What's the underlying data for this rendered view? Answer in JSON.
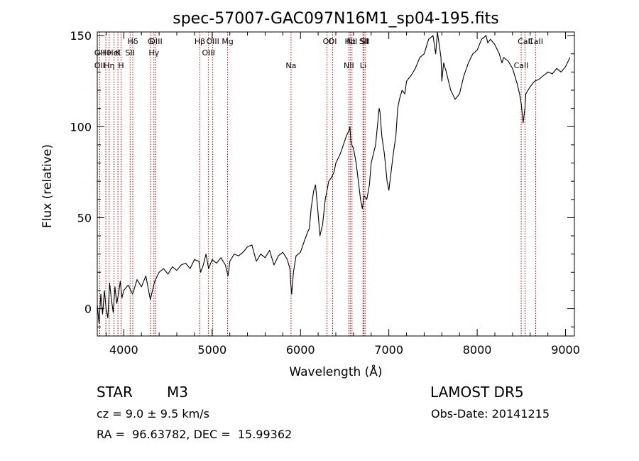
{
  "chart_data": {
    "type": "line",
    "title": "spec-57007-GAC097N16M1_sp04-195.fits",
    "xlabel": "Wavelength (Å)",
    "ylabel": "Flux (relative)",
    "xlim": [
      3700,
      9100
    ],
    "ylim": [
      -15,
      152
    ],
    "xticks": [
      4000,
      5000,
      6000,
      7000,
      8000,
      9000
    ],
    "yticks": [
      0,
      50,
      100,
      150
    ],
    "grid": false,
    "series": [
      {
        "x": [
          3700,
          3720,
          3740,
          3760,
          3780,
          3800,
          3820,
          3840,
          3860,
          3880,
          3900,
          3920,
          3940,
          3960,
          3980,
          4000,
          4050,
          4100,
          4150,
          4200,
          4250,
          4300,
          4350,
          4400,
          4450,
          4500,
          4550,
          4600,
          4650,
          4700,
          4750,
          4800,
          4850,
          4870,
          4900,
          4930,
          4960,
          5000,
          5050,
          5100,
          5150,
          5180,
          5200,
          5250,
          5300,
          5350,
          5400,
          5450,
          5500,
          5550,
          5600,
          5650,
          5700,
          5750,
          5800,
          5850,
          5880,
          5890,
          5900,
          5920,
          5950,
          6000,
          6050,
          6080,
          6100,
          6120,
          6150,
          6170,
          6200,
          6220,
          6250,
          6280,
          6300,
          6320,
          6350,
          6380,
          6400,
          6450,
          6500,
          6520,
          6550,
          6560,
          6570,
          6580,
          6600,
          6630,
          6650,
          6680,
          6700,
          6720,
          6750,
          6780,
          6800,
          6850,
          6870,
          6890,
          6900,
          6920,
          6950,
          6980,
          7000,
          7050,
          7080,
          7100,
          7120,
          7150,
          7180,
          7200,
          7250,
          7300,
          7350,
          7400,
          7450,
          7500,
          7530,
          7550,
          7570,
          7590,
          7600,
          7620,
          7650,
          7700,
          7750,
          7800,
          7850,
          7900,
          7950,
          8000,
          8050,
          8100,
          8120,
          8150,
          8200,
          8250,
          8280,
          8300,
          8350,
          8400,
          8450,
          8480,
          8500,
          8520,
          8540,
          8550,
          8600,
          8650,
          8700,
          8750,
          8800,
          8850,
          8900,
          8950,
          9000,
          9050
        ],
        "y": [
          2,
          -8,
          8,
          -3,
          10,
          0,
          -5,
          14,
          5,
          -2,
          12,
          3,
          8,
          15,
          6,
          10,
          13,
          8,
          16,
          12,
          18,
          5,
          15,
          20,
          22,
          19,
          23,
          21,
          24,
          25,
          22,
          27,
          26,
          20,
          24,
          30,
          22,
          27,
          25,
          28,
          24,
          18,
          26,
          30,
          29,
          31,
          34,
          35,
          26,
          30,
          28,
          32,
          24,
          29,
          31,
          27,
          22,
          14,
          8,
          20,
          29,
          31,
          38,
          42,
          44,
          55,
          65,
          68,
          52,
          40,
          46,
          60,
          65,
          70,
          72,
          75,
          80,
          85,
          92,
          95,
          98,
          100,
          92,
          90,
          88,
          80,
          72,
          60,
          55,
          62,
          60,
          68,
          80,
          90,
          100,
          110,
          108,
          95,
          85,
          70,
          65,
          85,
          95,
          110,
          115,
          120,
          118,
          125,
          128,
          132,
          138,
          140,
          148,
          150,
          140,
          152,
          145,
          138,
          125,
          135,
          130,
          120,
          115,
          118,
          128,
          135,
          140,
          142,
          148,
          150,
          146,
          148,
          145,
          140,
          135,
          138,
          136,
          132,
          124,
          118,
          112,
          102,
          110,
          118,
          122,
          125,
          126,
          128,
          130,
          129,
          132,
          130,
          133,
          138
        ]
      }
    ],
    "line_markers": [
      {
        "label": "Hδ",
        "wavelength": 4102
      },
      {
        "label": "OIII",
        "wavelength": 4363
      },
      {
        "label": "OIII",
        "wavelength": 5007
      },
      {
        "label": "OI",
        "wavelength": 6300
      },
      {
        "label": "Hα",
        "wavelength": 6563
      },
      {
        "label": "SII",
        "wavelength": 6717
      },
      {
        "label": "CaII",
        "wavelength": 8542
      },
      {
        "label": "OII",
        "wavelength": 3727
      },
      {
        "label": "Hθ",
        "wavelength": 3797
      },
      {
        "label": "K",
        "wavelength": 3934
      },
      {
        "label": "HeI",
        "wavelength": 3889
      },
      {
        "label": "SII",
        "wavelength": 4072
      },
      {
        "label": "Hγ",
        "wavelength": 4341
      },
      {
        "label": "OIII",
        "wavelength": 4959
      },
      {
        "label": "Na",
        "wavelength": 5893
      },
      {
        "label": "NII",
        "wavelength": 6548
      },
      {
        "label": "Li",
        "wavelength": 6708
      },
      {
        "label": "CaII",
        "wavelength": 8498
      },
      {
        "label": "OII",
        "wavelength": 3727
      },
      {
        "label": "Hη",
        "wavelength": 3835
      },
      {
        "label": "H",
        "wavelength": 3969
      },
      {
        "label": "G",
        "wavelength": 4304
      },
      {
        "label": "Hβ",
        "wavelength": 4861
      },
      {
        "label": "Mg",
        "wavelength": 5175
      },
      {
        "label": "OI",
        "wavelength": 6364
      },
      {
        "label": "NII",
        "wavelength": 6583
      },
      {
        "label": "SII",
        "wavelength": 6731
      },
      {
        "label": "CaII",
        "wavelength": 8662
      }
    ]
  },
  "info": {
    "object_class": "STAR",
    "subclass": "M3",
    "survey": "LAMOST DR5",
    "cz_line": "cz = 9.0 ± 9.5 km/s",
    "obs_date": "Obs-Date: 20141215",
    "coords": "RA =  96.63782, DEC =  15.99362"
  },
  "colors": {
    "marker_line": "#b00000",
    "spectrum": "#000000"
  }
}
